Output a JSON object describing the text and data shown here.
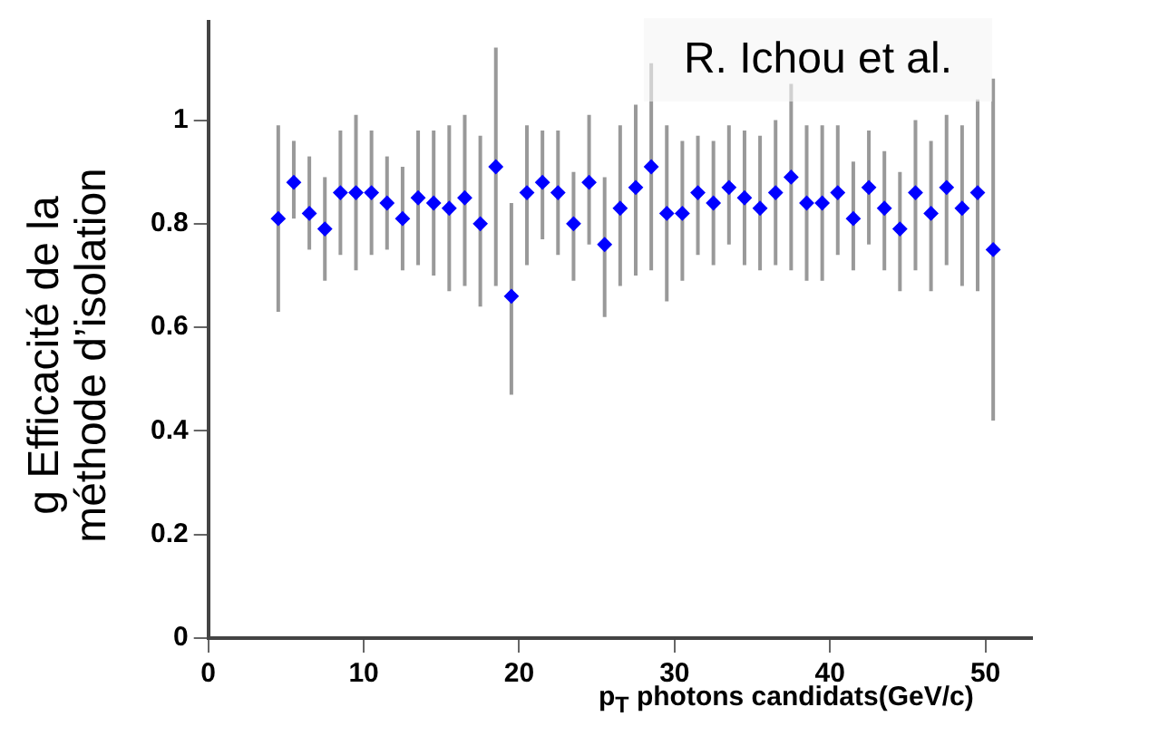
{
  "chart_data": {
    "type": "scatter",
    "xlabel": "p$_{T}$ photons candidats(GeV/c)",
    "ylabel": "g Efficacité de la\nméthode d’isolation",
    "annotations": [
      "R. Ichou et al."
    ],
    "x": [
      4.5,
      5.5,
      6.5,
      7.5,
      8.5,
      9.5,
      10.5,
      11.5,
      12.5,
      13.5,
      14.5,
      15.5,
      16.5,
      17.5,
      18.5,
      19.5,
      20.5,
      21.5,
      22.5,
      23.5,
      24.5,
      25.5,
      26.5,
      27.5,
      28.5,
      29.5,
      30.5,
      31.5,
      32.5,
      33.5,
      34.5,
      35.5,
      36.5,
      37.5,
      38.5,
      39.5,
      40.5,
      41.5,
      42.5,
      43.5,
      44.5,
      45.5,
      46.5,
      47.5,
      48.5,
      49.5,
      50.5
    ],
    "series": [
      {
        "color": "#0000ff",
        "values": [
          0.81,
          0.88,
          0.82,
          0.79,
          0.86,
          0.86,
          0.86,
          0.84,
          0.81,
          0.85,
          0.84,
          0.83,
          0.85,
          0.8,
          0.91,
          0.66,
          0.86,
          0.88,
          0.86,
          0.8,
          0.88,
          0.76,
          0.83,
          0.87,
          0.91,
          0.82,
          0.82,
          0.86,
          0.84,
          0.87,
          0.85,
          0.83,
          0.86,
          0.89,
          0.84,
          0.84,
          0.86,
          0.81,
          0.87,
          0.83,
          0.79,
          0.86,
          0.82,
          0.87,
          0.83,
          0.86,
          0.75
        ],
        "errors": [
          [
            0.63,
            0.99
          ],
          [
            0.81,
            0.96
          ],
          [
            0.75,
            0.93
          ],
          [
            0.69,
            0.89
          ],
          [
            0.74,
            0.98
          ],
          [
            0.71,
            1.01
          ],
          [
            0.74,
            0.98
          ],
          [
            0.75,
            0.93
          ],
          [
            0.71,
            0.91
          ],
          [
            0.72,
            0.98
          ],
          [
            0.7,
            0.98
          ],
          [
            0.67,
            0.99
          ],
          [
            0.68,
            1.01
          ],
          [
            0.64,
            0.97
          ],
          [
            0.68,
            1.14
          ],
          [
            0.47,
            0.84
          ],
          [
            0.72,
            0.99
          ],
          [
            0.77,
            0.98
          ],
          [
            0.74,
            0.98
          ],
          [
            0.69,
            0.9
          ],
          [
            0.76,
            1.01
          ],
          [
            0.62,
            0.89
          ],
          [
            0.68,
            0.99
          ],
          [
            0.7,
            1.03
          ],
          [
            0.71,
            1.11
          ],
          [
            0.65,
            0.99
          ],
          [
            0.69,
            0.96
          ],
          [
            0.74,
            0.97
          ],
          [
            0.72,
            0.96
          ],
          [
            0.76,
            0.99
          ],
          [
            0.72,
            0.98
          ],
          [
            0.71,
            0.97
          ],
          [
            0.72,
            1.0
          ],
          [
            0.71,
            1.07
          ],
          [
            0.69,
            0.99
          ],
          [
            0.69,
            0.99
          ],
          [
            0.74,
            0.99
          ],
          [
            0.71,
            0.92
          ],
          [
            0.76,
            0.98
          ],
          [
            0.71,
            0.94
          ],
          [
            0.67,
            0.9
          ],
          [
            0.71,
            1.0
          ],
          [
            0.67,
            0.96
          ],
          [
            0.72,
            1.01
          ],
          [
            0.68,
            0.99
          ],
          [
            0.67,
            1.04
          ],
          [
            0.42,
            1.08
          ]
        ]
      }
    ],
    "xlim": [
      0,
      53
    ],
    "xticks": [
      0,
      10,
      20,
      30,
      40,
      50
    ],
    "ylim": [
      0,
      1.19
    ],
    "yticks": [
      0,
      0.2,
      0.4,
      0.6,
      0.8,
      1
    ],
    "marker": "diamond",
    "legend": false,
    "grid": false
  }
}
